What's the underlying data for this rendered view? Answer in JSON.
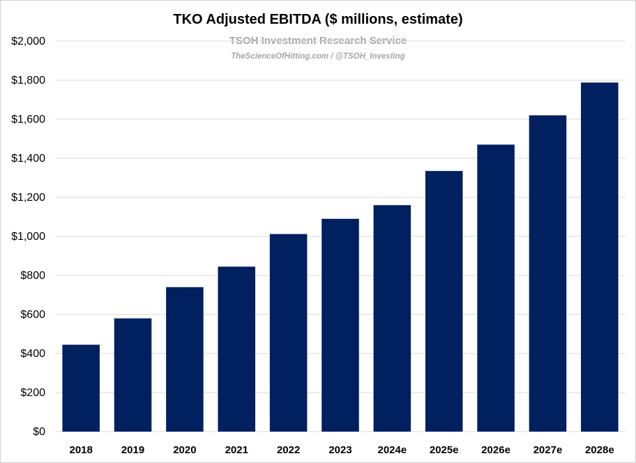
{
  "chart_data": {
    "type": "bar",
    "title": "TKO Adjusted EBITDA ($ millions, estimate)",
    "subtitle": "TSOH Investment Research Service",
    "source": "TheScienceOfHitting.com / @TSOH_Investing",
    "categories": [
      "2018",
      "2019",
      "2020",
      "2021",
      "2022",
      "2023",
      "2024e",
      "2025e",
      "2026e",
      "2027e",
      "2028e"
    ],
    "values": [
      445,
      580,
      740,
      845,
      1012,
      1090,
      1160,
      1335,
      1470,
      1620,
      1788
    ],
    "ylim": [
      0,
      2000
    ],
    "yticks": [
      0,
      200,
      400,
      600,
      800,
      1000,
      1200,
      1400,
      1600,
      1800,
      2000
    ],
    "ytick_labels": [
      "$0",
      "$200",
      "$400",
      "$600",
      "$800",
      "$1,000",
      "$1,200",
      "$1,400",
      "$1,600",
      "$1,800",
      "$2,000"
    ],
    "grid": true,
    "legend": "none",
    "bar_color": "#002060"
  }
}
